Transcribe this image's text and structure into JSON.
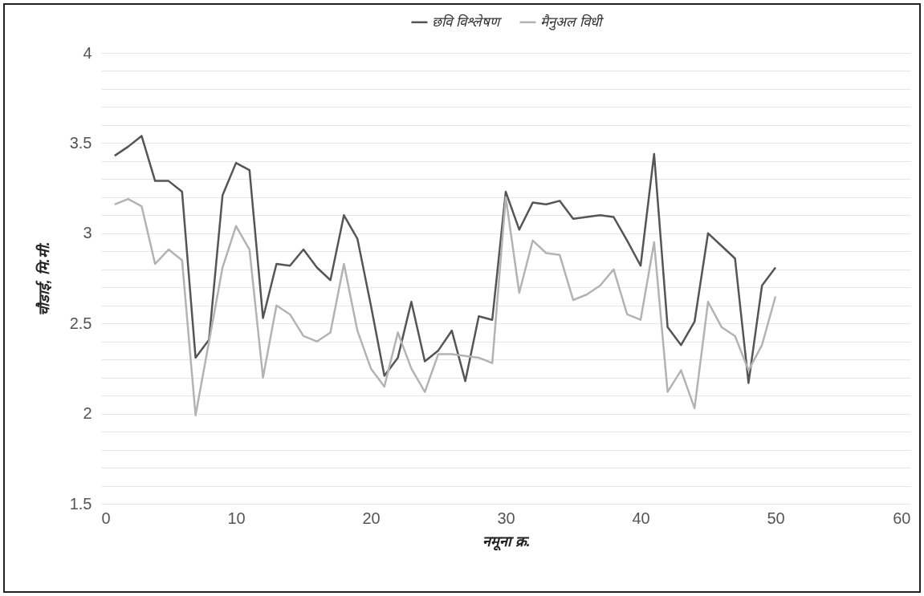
{
  "chart_data": {
    "type": "line",
    "xlabel": "नमूना क्र.",
    "ylabel": "चौडाई, मि.मी.",
    "x": [
      1,
      2,
      3,
      4,
      5,
      6,
      7,
      8,
      9,
      10,
      11,
      12,
      13,
      14,
      15,
      16,
      17,
      18,
      19,
      20,
      21,
      22,
      23,
      24,
      25,
      26,
      27,
      28,
      29,
      30,
      31,
      32,
      33,
      34,
      35,
      36,
      37,
      38,
      39,
      40,
      41,
      42,
      43,
      44,
      45,
      46,
      47,
      48,
      49,
      50
    ],
    "series": [
      {
        "name": "छवि विश्लेषण",
        "color": "#555555",
        "values": [
          3.43,
          3.48,
          3.54,
          3.29,
          3.29,
          3.23,
          2.31,
          2.41,
          3.21,
          3.39,
          3.35,
          2.53,
          2.83,
          2.82,
          2.91,
          2.81,
          2.74,
          3.1,
          2.97,
          2.6,
          2.21,
          2.31,
          2.62,
          2.29,
          2.35,
          2.46,
          2.18,
          2.54,
          2.52,
          3.23,
          3.02,
          3.17,
          3.16,
          3.18,
          3.08,
          3.09,
          3.1,
          3.09,
          2.96,
          2.82,
          3.44,
          2.48,
          2.38,
          2.51,
          3.0,
          2.93,
          2.86,
          2.17,
          2.71,
          2.81
        ]
      },
      {
        "name": "मैनुअल विधी",
        "color": "#b3b3b3",
        "values": [
          3.16,
          3.19,
          3.15,
          2.83,
          2.91,
          2.85,
          1.99,
          2.4,
          2.81,
          3.04,
          2.91,
          2.2,
          2.6,
          2.55,
          2.43,
          2.4,
          2.45,
          2.83,
          2.46,
          2.25,
          2.15,
          2.45,
          2.25,
          2.12,
          2.33,
          2.33,
          2.32,
          2.31,
          2.28,
          3.2,
          2.67,
          2.96,
          2.89,
          2.88,
          2.63,
          2.66,
          2.71,
          2.8,
          2.55,
          2.52,
          2.95,
          2.12,
          2.24,
          2.03,
          2.62,
          2.48,
          2.43,
          2.24,
          2.38,
          2.65
        ]
      }
    ],
    "xlim": [
      0,
      60
    ],
    "xticks": [
      0,
      10,
      20,
      30,
      40,
      50,
      60
    ],
    "ylim": [
      1.5,
      4
    ],
    "yticks": [
      1.5,
      {
        "value": 1.6,
        "label": null
      },
      {
        "value": 1.7,
        "label": null
      },
      {
        "value": 1.8,
        "label": null
      },
      {
        "value": 1.9,
        "label": null
      },
      2,
      {
        "value": 2.1,
        "label": null
      },
      {
        "value": 2.2,
        "label": null
      },
      {
        "value": 2.3,
        "label": null
      },
      {
        "value": 2.4,
        "label": null
      },
      2.5,
      {
        "value": 2.6,
        "label": null
      },
      {
        "value": 2.7,
        "label": null
      },
      {
        "value": 2.8,
        "label": null
      },
      {
        "value": 2.9,
        "label": null
      },
      3,
      {
        "value": 3.1,
        "label": null
      },
      {
        "value": 3.2,
        "label": null
      },
      {
        "value": 3.3,
        "label": null
      },
      {
        "value": 3.4,
        "label": null
      },
      3.5,
      {
        "value": 3.6,
        "label": null
      },
      {
        "value": 3.7,
        "label": null
      },
      {
        "value": 3.8,
        "label": null
      },
      {
        "value": 3.9,
        "label": null
      },
      4
    ],
    "grid": "y",
    "legend": "top",
    "marker": "none",
    "line_style": "solid"
  }
}
